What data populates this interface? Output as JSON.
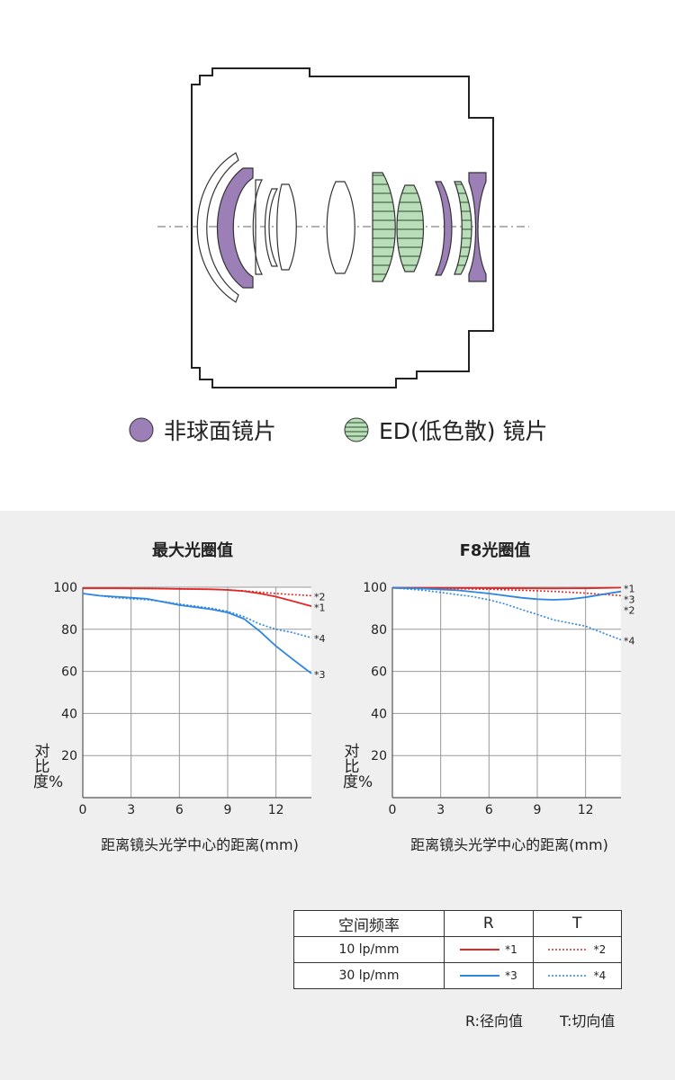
{
  "legend": {
    "aspherical_label": "非球面镜片",
    "ed_label": "ED(低色散) 镜片",
    "aspherical_color": "#9B7FB6",
    "ed_color": "#B9DDB9"
  },
  "colors": {
    "red": "#E32626",
    "blue": "#2E86DE"
  },
  "chart_data": [
    {
      "type": "line",
      "title": "最大光圈值",
      "xlabel": "距离镜头光学中心的距离(mm)",
      "ylabel": "对比度%",
      "xlim": [
        0,
        14.2
      ],
      "ylim": [
        0,
        100
      ],
      "xticks": [
        0,
        3,
        6,
        9,
        12
      ],
      "yticks": [
        20,
        40,
        60,
        80,
        100
      ],
      "series": [
        {
          "name": "*1",
          "color": "#E32626",
          "style": "solid",
          "x": [
            0,
            2,
            4,
            6,
            8,
            9,
            10,
            11,
            12,
            13,
            14.2
          ],
          "y": [
            99.5,
            99.5,
            99.4,
            99.2,
            99,
            98.7,
            98.1,
            97,
            95.5,
            93.5,
            91
          ]
        },
        {
          "name": "*2",
          "color": "#E32626",
          "style": "dotted",
          "x": [
            0,
            2,
            4,
            6,
            8,
            9,
            10,
            11,
            12,
            13,
            14.2
          ],
          "y": [
            99.5,
            99.5,
            99.4,
            99.2,
            99,
            98.7,
            98.3,
            97.6,
            97,
            96.5,
            96
          ]
        },
        {
          "name": "*3",
          "color": "#2E86DE",
          "style": "solid",
          "x": [
            0,
            1,
            2,
            3,
            4,
            5,
            6,
            7,
            8,
            9,
            10,
            11,
            12,
            13,
            14.2
          ],
          "y": [
            97,
            96,
            95.5,
            95,
            94.5,
            93,
            91.5,
            90.5,
            89.5,
            88,
            85,
            79,
            72,
            66,
            59
          ]
        },
        {
          "name": "*4",
          "color": "#2E86DE",
          "style": "dotted",
          "x": [
            0,
            2,
            3,
            4,
            5,
            6,
            7,
            8,
            9,
            10,
            11,
            12,
            13,
            14.2
          ],
          "y": [
            97,
            95,
            94.5,
            94,
            93.2,
            92,
            91,
            90,
            88.5,
            86,
            82.5,
            80,
            78.5,
            76
          ]
        }
      ],
      "label_order": [
        "*2",
        "*1",
        "*4",
        "*3"
      ]
    },
    {
      "type": "line",
      "title": "F8光圈值",
      "xlabel": "距离镜头光学中心的距离(mm)",
      "ylabel": "对比度%",
      "xlim": [
        0,
        14.2
      ],
      "ylim": [
        0,
        100
      ],
      "xticks": [
        0,
        3,
        6,
        9,
        12
      ],
      "yticks": [
        20,
        40,
        60,
        80,
        100
      ],
      "series": [
        {
          "name": "*1",
          "color": "#E32626",
          "style": "solid",
          "x": [
            0,
            4,
            8,
            10,
            12,
            14.2
          ],
          "y": [
            99.7,
            99.6,
            99.5,
            99.4,
            99.5,
            99.8
          ]
        },
        {
          "name": "*2",
          "color": "#E32626",
          "style": "dotted",
          "x": [
            0,
            4,
            6,
            8,
            10,
            12,
            14.2
          ],
          "y": [
            99.7,
            99.3,
            99,
            98.6,
            98,
            97.2,
            96
          ]
        },
        {
          "name": "*3",
          "color": "#2E86DE",
          "style": "solid",
          "x": [
            0,
            2,
            4,
            6,
            8,
            9,
            10,
            11,
            12,
            13,
            14.2
          ],
          "y": [
            99.7,
            99.3,
            98.6,
            97,
            95,
            94.3,
            94,
            94.3,
            95.2,
            96.5,
            98
          ]
        },
        {
          "name": "*4",
          "color": "#2E86DE",
          "style": "dotted",
          "x": [
            0,
            2,
            3,
            4,
            5,
            6,
            7,
            8,
            9,
            10,
            11,
            12,
            13,
            14.2
          ],
          "y": [
            99.7,
            98.5,
            97.5,
            96.5,
            95.5,
            94,
            92,
            89.5,
            87,
            84.5,
            83,
            81.5,
            78.5,
            75
          ]
        }
      ],
      "label_order": [
        "*1",
        "*3",
        "*2",
        "*4"
      ]
    }
  ],
  "freq_table": {
    "header": {
      "freq": "空间频率",
      "r": "R",
      "t": "T"
    },
    "rows": [
      {
        "freq": "10 lp/mm",
        "r_label": "*1",
        "t_label": "*2",
        "color": "#E32626"
      },
      {
        "freq": "30 lp/mm",
        "r_label": "*3",
        "t_label": "*4",
        "color": "#2E86DE"
      }
    ]
  },
  "notes": {
    "r": "R:径向值",
    "t": "T:切向值"
  }
}
